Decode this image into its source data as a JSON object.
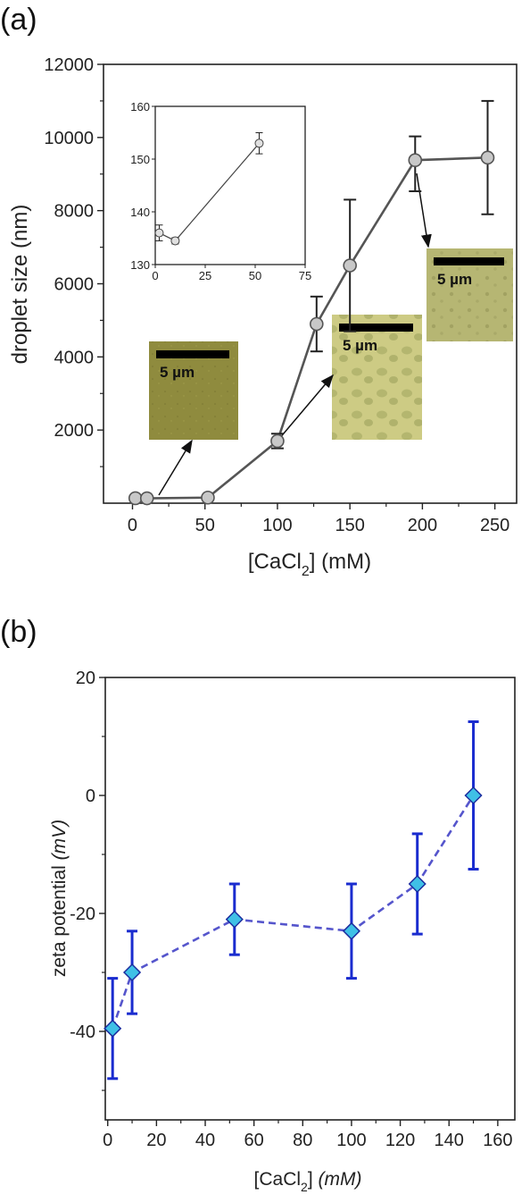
{
  "chart_data": [
    {
      "panel_label": "(a)",
      "type": "line",
      "xlabel": "[CaCl",
      "xlabel_sub": "2",
      "xlabel_suffix": "] (mM)",
      "ylabel": "droplet size (nm)",
      "xlim": [
        -20,
        265
      ],
      "ylim": [
        0,
        12000
      ],
      "xticks": [
        0,
        50,
        100,
        150,
        200,
        250
      ],
      "yticks": [
        2000,
        4000,
        6000,
        8000,
        10000,
        12000
      ],
      "x": [
        2,
        10,
        52,
        100,
        127,
        150,
        195,
        245
      ],
      "y": [
        136,
        134,
        153,
        1700,
        4900,
        6500,
        9380,
        9450
      ],
      "y_err_low": [
        0,
        0,
        0,
        200,
        750,
        1800,
        850,
        1550
      ],
      "y_err_high": [
        0,
        0,
        0,
        200,
        750,
        1800,
        650,
        1550
      ],
      "marker": "circle",
      "line_color": "#555555",
      "marker_fill": "#c8c8c8",
      "grid": false,
      "micrographs": [
        {
          "scale_label": "5 µm",
          "tone": "#8f8b3e",
          "points_to_x": 52
        },
        {
          "scale_label": "5 µm",
          "tone": "#c9c67e",
          "points_to_x": 100
        },
        {
          "scale_label": "5 µm",
          "tone": "#b4b56f",
          "points_to_x": 195
        }
      ],
      "inset": {
        "type": "line",
        "xlim": [
          0,
          75
        ],
        "ylim": [
          130,
          160
        ],
        "xticks": [
          0,
          25,
          50,
          75
        ],
        "yticks": [
          130,
          140,
          150,
          160
        ],
        "x": [
          2,
          10,
          52
        ],
        "y": [
          136,
          134.5,
          153
        ],
        "y_err": [
          1.5,
          0.6,
          2
        ]
      }
    },
    {
      "panel_label": "(b)",
      "type": "line",
      "xlabel": "[CaCl",
      "xlabel_sub": "2",
      "xlabel_suffix": "] ",
      "xlabel_unit": "(mM)",
      "ylabel": "zeta potential ",
      "ylabel_unit": "(mV)",
      "xlim": [
        -1,
        167
      ],
      "ylim": [
        -55,
        20
      ],
      "xticks": [
        0,
        20,
        40,
        60,
        80,
        100,
        120,
        140,
        160
      ],
      "yticks": [
        -40,
        -20,
        0,
        20
      ],
      "x": [
        2,
        10,
        52,
        100,
        127,
        150
      ],
      "y": [
        -39.5,
        -30,
        -21,
        -23,
        -15,
        0
      ],
      "y_err": [
        8.5,
        7,
        6,
        8,
        8.5,
        12.5
      ],
      "marker": "diamond",
      "line_style": "dashed",
      "line_color": "#5555cc",
      "errorbar_color": "#1a2ccf",
      "marker_fill": "#3fc0e6",
      "grid": false
    }
  ]
}
